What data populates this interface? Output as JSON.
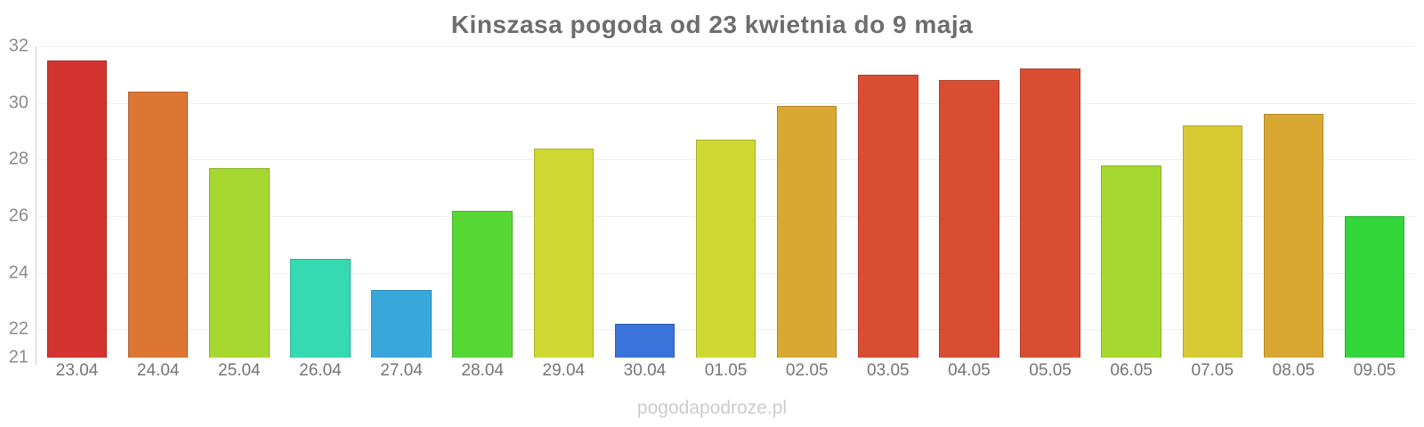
{
  "chart_data": {
    "type": "bar",
    "title": "Kinszasa pogoda od 23 kwietnia do 9 maja",
    "categories": [
      "23.04",
      "24.04",
      "25.04",
      "26.04",
      "27.04",
      "28.04",
      "29.04",
      "30.04",
      "01.05",
      "02.05",
      "03.05",
      "04.05",
      "05.05",
      "06.05",
      "07.05",
      "08.05",
      "09.05"
    ],
    "values": [
      31.5,
      30.4,
      27.7,
      24.5,
      23.4,
      26.2,
      28.4,
      22.2,
      28.7,
      29.9,
      31.0,
      30.8,
      31.2,
      27.8,
      29.2,
      29.6,
      26.0
    ],
    "bar_colors": [
      "#d3342f",
      "#dd7533",
      "#a6d831",
      "#35d9b2",
      "#38a8dc",
      "#57d733",
      "#cfd832",
      "#3a73d9",
      "#cfd832",
      "#d9a832",
      "#d94e32",
      "#d94e32",
      "#d94e32",
      "#a6d831",
      "#d8ca33",
      "#d9a832",
      "#33d63a"
    ],
    "xlabel": "",
    "ylabel": "",
    "ylim": [
      21,
      32
    ],
    "yticks": [
      32,
      30,
      28,
      26,
      24,
      22,
      21
    ],
    "gridline_ticks": [
      32,
      30,
      28,
      26,
      24,
      22
    ],
    "grid": "horizontal-faint",
    "legend": "none"
  },
  "watermark": "pogodapodroze.pl",
  "colors": {
    "title": "#6d6d6d",
    "y_axis_label": "#8a8a8a",
    "x_axis_label": "#757575",
    "gridline": "#f0f0f0",
    "axis_line": "#d0d0d0",
    "watermark": "#cccccc",
    "background": "#ffffff"
  }
}
